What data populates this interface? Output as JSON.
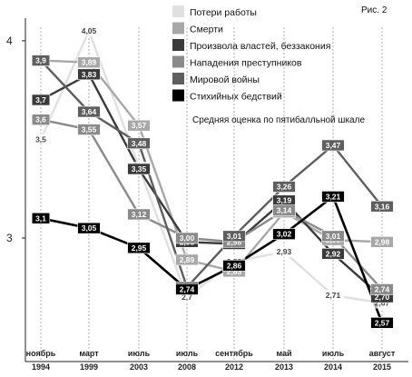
{
  "chart_data": {
    "type": "line",
    "fig_label": "Рис. 2",
    "note": "Средняя оценка по пятибалльной шкале",
    "categories": [
      {
        "month": "ноябрь",
        "year": "1994"
      },
      {
        "month": "март",
        "year": "1999"
      },
      {
        "month": "июль",
        "year": "2003"
      },
      {
        "month": "июль",
        "year": "2008"
      },
      {
        "month": "сентябрь",
        "year": "2012"
      },
      {
        "month": "май",
        "year": "2013"
      },
      {
        "month": "июль",
        "year": "2014"
      },
      {
        "month": "август",
        "year": "2015"
      }
    ],
    "yticks": [
      {
        "value": 3,
        "label": "3"
      },
      {
        "value": 4,
        "label": "4"
      }
    ],
    "ylim": [
      2.45,
      4.1
    ],
    "series": [
      {
        "name": "Потери работы",
        "color": "#e0e0e0",
        "label_text": "#444444",
        "label_bg": "none",
        "values": [
          3.5,
          4.05,
          3.36,
          2.7,
          2.88,
          2.93,
          2.71,
          2.67
        ],
        "labels": [
          "3,5",
          "4,05",
          "3,36",
          "2,7",
          "2,88",
          "2,93",
          "2,71",
          "2,67"
        ]
      },
      {
        "name": "Смерти",
        "color": "#a8a8a8",
        "label_text": "#ffffff",
        "label_bg": "#a8a8a8",
        "values": [
          3.9,
          3.89,
          3.57,
          2.89,
          2.83,
          3.13,
          2.99,
          2.98
        ],
        "labels": [
          "3,9",
          "3,89",
          "3,57",
          "2,89",
          "2,83",
          "3,13",
          "2,99",
          "2,98"
        ]
      },
      {
        "name": "Произвола властей, беззакония",
        "color": "#3a3a3a",
        "label_text": "#ffffff",
        "label_bg": "#3a3a3a",
        "values": [
          3.7,
          3.83,
          3.35,
          2.98,
          2.97,
          3.19,
          2.92,
          2.7
        ],
        "labels": [
          "3,7",
          "3,83",
          "3,35",
          "2,98",
          "2,97",
          "3,19",
          "2,92",
          "2,70"
        ]
      },
      {
        "name": "Нападения преступников",
        "color": "#8a8a8a",
        "label_text": "#ffffff",
        "label_bg": "#8a8a8a",
        "values": [
          3.6,
          3.55,
          3.12,
          3.0,
          2.98,
          3.14,
          3.01,
          2.74
        ],
        "labels": [
          "3,6",
          "3,55",
          "3,12",
          "3,00",
          "2,98",
          "3,14",
          "3,01",
          "2,74"
        ]
      },
      {
        "name": "Мировой войны",
        "color": "#5e5e5e",
        "label_text": "#ffffff",
        "label_bg": "#5e5e5e",
        "values": [
          3.9,
          3.64,
          3.48,
          2.75,
          3.01,
          3.26,
          3.47,
          3.16
        ],
        "labels": [
          "3,9",
          "3,64",
          "3,48",
          "2,75",
          "3,01",
          "3,26",
          "3,47",
          "3,16"
        ]
      },
      {
        "name": "Стихийных бедствий",
        "color": "#000000",
        "label_text": "#ffffff",
        "label_bg": "#000000",
        "values": [
          3.1,
          3.05,
          2.95,
          2.74,
          2.86,
          3.02,
          3.21,
          2.57
        ],
        "labels": [
          "3,1",
          "3,05",
          "2,95",
          "2,74",
          "2,86",
          "3,02",
          "3,21",
          "2,57"
        ]
      }
    ]
  }
}
